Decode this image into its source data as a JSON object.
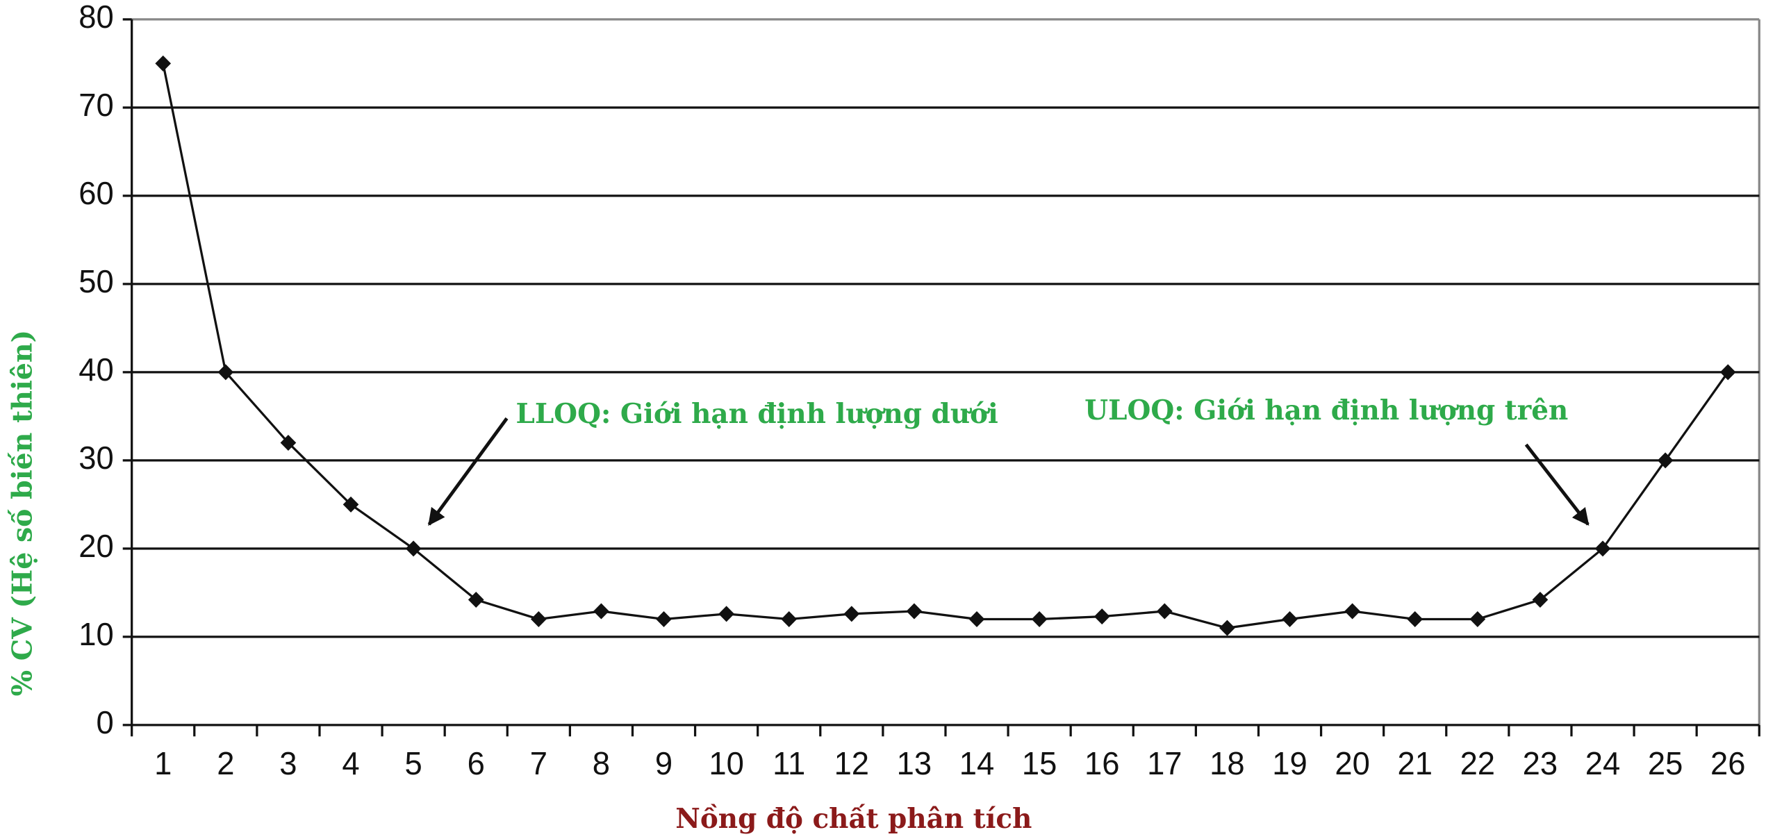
{
  "chart_data": {
    "type": "line",
    "x_label": "Nồng độ chất phân tích",
    "y_label": "% CV (Hệ số biến thiên)",
    "categories": [
      "1",
      "2",
      "3",
      "4",
      "5",
      "6",
      "7",
      "8",
      "9",
      "10",
      "11",
      "12",
      "13",
      "14",
      "15",
      "16",
      "17",
      "18",
      "19",
      "20",
      "21",
      "22",
      "23",
      "24",
      "25",
      "26"
    ],
    "values": [
      75,
      40,
      32,
      25,
      20,
      14.2,
      12,
      12.9,
      12,
      12.6,
      12,
      12.6,
      12.9,
      12,
      12,
      12.3,
      12.9,
      11,
      12,
      12.9,
      12,
      12,
      14.2,
      20,
      30,
      40
    ],
    "color": "#111111",
    "ylim": [
      0,
      80
    ],
    "yticks": [
      0,
      10,
      20,
      30,
      40,
      50,
      60,
      70,
      80
    ],
    "grid": true,
    "annotations": [
      "LLOQ: Giới hạn định lượng dưới",
      "ULOQ: Giới hạn định lượng trên"
    ]
  }
}
